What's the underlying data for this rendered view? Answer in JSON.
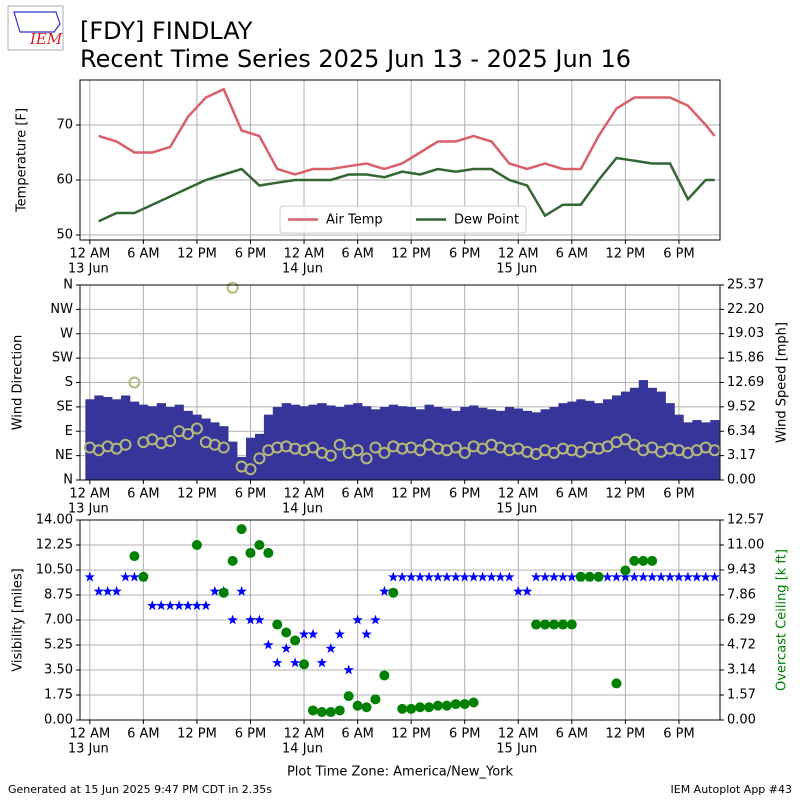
{
  "header": {
    "title": "[FDY] FINDLAY",
    "subtitle": "Recent Time Series 2025 Jun 13 - 2025 Jun 16",
    "logo_text": "IEM"
  },
  "footer": {
    "left": "Generated at 15 Jun 2025 9:47 PM CDT in 2.35s",
    "right": "IEM Autoplot App #43"
  },
  "chart_data": [
    {
      "type": "line",
      "ylabel": "Temperature [F]",
      "grid": true,
      "legend": "lower center",
      "xlim": [
        -1.1,
        70.6
      ],
      "ylim": [
        49.09,
        78.18
      ],
      "yticks": [
        50,
        60,
        70
      ],
      "xticks": [
        {
          "value": 0,
          "label": "12 AM"
        },
        {
          "value": 6,
          "label": "6 AM"
        },
        {
          "value": 12,
          "label": "12 PM"
        },
        {
          "value": 18,
          "label": "6 PM"
        },
        {
          "value": 24,
          "label": "12 AM"
        },
        {
          "value": 30,
          "label": "6 AM"
        },
        {
          "value": 36,
          "label": "12 PM"
        },
        {
          "value": 42,
          "label": "6 PM"
        },
        {
          "value": 48,
          "label": "12 AM"
        },
        {
          "value": 54,
          "label": "6 AM"
        },
        {
          "value": 60,
          "label": "12 PM"
        },
        {
          "value": 66,
          "label": "6 PM"
        }
      ],
      "xdates": [
        {
          "value": 0,
          "label": "13 Jun"
        },
        {
          "value": 24,
          "label": "14 Jun"
        },
        {
          "value": 48,
          "label": "15 Jun"
        }
      ],
      "x": [
        1,
        3,
        5,
        7,
        9,
        11,
        13,
        15,
        17,
        19,
        21,
        23,
        25,
        27,
        29,
        31,
        33,
        35,
        37,
        39,
        41,
        43,
        45,
        47,
        49,
        51,
        53,
        55,
        57,
        59,
        61,
        63,
        65,
        67,
        69,
        70
      ],
      "series": [
        {
          "name": "Air Temp",
          "color": "#d9606a",
          "mark": "line",
          "values": [
            68,
            67,
            65,
            65,
            66,
            71.5,
            75,
            76.5,
            69,
            68,
            62,
            61,
            62,
            62,
            62.5,
            63,
            62,
            63,
            65,
            67,
            67,
            68,
            67,
            63,
            62,
            63,
            62,
            62,
            68,
            73,
            75,
            75,
            75,
            73.5,
            70,
            68
          ]
        },
        {
          "name": "Dew Point",
          "color": "#336633",
          "mark": "line",
          "values": [
            52.5,
            54,
            54,
            55.5,
            57,
            58.5,
            60,
            61,
            62,
            59,
            59.5,
            60,
            60,
            60,
            61,
            61,
            60.5,
            61.5,
            61,
            62,
            61.5,
            62,
            62,
            60,
            59,
            53.5,
            55.5,
            55.5,
            60,
            64,
            63.5,
            63,
            63,
            56.5,
            60,
            60
          ]
        }
      ]
    },
    {
      "type": "bar",
      "ylabel": "Wind Direction",
      "y2label": "Wind Speed [mph]",
      "grid": true,
      "xlim": [
        -1.1,
        70.6
      ],
      "ylim": [
        0,
        360
      ],
      "y2lim": [
        0,
        25.37
      ],
      "yticks": [
        {
          "value": 0,
          "label": "N"
        },
        {
          "value": 45,
          "label": "NE"
        },
        {
          "value": 90,
          "label": "E"
        },
        {
          "value": 135,
          "label": "SE"
        },
        {
          "value": 180,
          "label": "S"
        },
        {
          "value": 225,
          "label": "SW"
        },
        {
          "value": 270,
          "label": "W"
        },
        {
          "value": 315,
          "label": "NW"
        },
        {
          "value": 360,
          "label": "N"
        }
      ],
      "y2ticks": [
        {
          "value": 0,
          "label": "0.00"
        },
        3.17,
        6.34,
        9.52,
        12.69,
        15.86,
        19.03,
        {
          "value": 22.2,
          "label": "22.20"
        },
        25.37
      ],
      "xticks": [
        {
          "value": 0,
          "label": "12 AM"
        },
        {
          "value": 6,
          "label": "6 AM"
        },
        {
          "value": 12,
          "label": "12 PM"
        },
        {
          "value": 18,
          "label": "6 PM"
        },
        {
          "value": 24,
          "label": "12 AM"
        },
        {
          "value": 30,
          "label": "6 AM"
        },
        {
          "value": 36,
          "label": "12 PM"
        },
        {
          "value": 42,
          "label": "6 PM"
        },
        {
          "value": 48,
          "label": "12 AM"
        },
        {
          "value": 54,
          "label": "6 AM"
        },
        {
          "value": 60,
          "label": "12 PM"
        },
        {
          "value": 66,
          "label": "6 PM"
        }
      ],
      "xdates": [
        {
          "value": 0,
          "label": "13 Jun"
        },
        {
          "value": 24,
          "label": "14 Jun"
        },
        {
          "value": 48,
          "label": "15 Jun"
        }
      ],
      "x": [
        0,
        1,
        2,
        3,
        4,
        5,
        6,
        7,
        8,
        9,
        10,
        11,
        12,
        13,
        14,
        15,
        16,
        17,
        18,
        19,
        20,
        21,
        22,
        23,
        24,
        25,
        26,
        27,
        28,
        29,
        30,
        31,
        32,
        33,
        34,
        35,
        36,
        37,
        38,
        39,
        40,
        41,
        42,
        43,
        44,
        45,
        46,
        47,
        48,
        49,
        50,
        51,
        52,
        53,
        54,
        55,
        56,
        57,
        58,
        59,
        60,
        61,
        62,
        63,
        64,
        65,
        66,
        67,
        68,
        69,
        70
      ],
      "series": [
        {
          "color": "#35359a",
          "mark": "bar",
          "axis": "y2",
          "values": [
            10.5,
            11,
            10.8,
            10.5,
            11,
            10.2,
            9.8,
            9.6,
            10,
            9.5,
            9.8,
            9,
            8.5,
            8,
            7.5,
            7,
            5,
            3,
            5.5,
            6,
            8.5,
            9.5,
            10,
            9.8,
            9.6,
            9.8,
            10,
            9.7,
            9.5,
            9.8,
            10,
            9.6,
            9.2,
            9.5,
            9.8,
            9.6,
            9.5,
            9.2,
            9.8,
            9.5,
            9.3,
            9,
            9.5,
            9.7,
            9.4,
            9.2,
            9,
            9.5,
            9.3,
            9,
            8.8,
            9.2,
            9.5,
            10,
            10.2,
            10.5,
            10.3,
            10,
            10.5,
            11,
            11.5,
            12,
            13,
            12,
            11.5,
            10,
            8.5,
            7.5,
            7.8,
            7.5,
            7.8
          ]
        },
        {
          "color": "#b5b87a",
          "mark": "circle",
          "axis": "y",
          "values": [
            60,
            55,
            62,
            58,
            65,
            180,
            70,
            75,
            68,
            72,
            90,
            85,
            95,
            70,
            65,
            60,
            355,
            25,
            20,
            40,
            55,
            60,
            62,
            58,
            55,
            60,
            50,
            45,
            65,
            50,
            55,
            40,
            60,
            50,
            62,
            58,
            60,
            55,
            65,
            58,
            55,
            60,
            50,
            62,
            58,
            65,
            60,
            55,
            58,
            52,
            48,
            55,
            50,
            58,
            55,
            52,
            60,
            58,
            62,
            70,
            75,
            65,
            55,
            60,
            52,
            58,
            55,
            50,
            55,
            60,
            55
          ]
        }
      ]
    },
    {
      "type": "scatter",
      "ylabel": "Visibility [miles]",
      "y2label": "Overcast Ceiling [k ft]",
      "y2label_color": "#008000",
      "xlabel": "Plot Time Zone: America/New_York",
      "grid": true,
      "xlim": [
        -1.1,
        70.6
      ],
      "ylim": [
        0,
        14
      ],
      "y2lim": [
        0,
        12.57
      ],
      "yticks": [
        {
          "value": 0,
          "label": "0.00"
        },
        1.75,
        {
          "value": 3.5,
          "label": "3.50"
        },
        5.25,
        {
          "value": 7,
          "label": "7.00"
        },
        8.75,
        {
          "value": 10.5,
          "label": "10.50"
        },
        12.25,
        {
          "value": 14,
          "label": "14.00"
        }
      ],
      "y2ticks": [
        {
          "value": 0,
          "label": "0.00"
        },
        1.57,
        3.14,
        4.72,
        6.29,
        7.86,
        9.43,
        {
          "value": 11,
          "label": "11.00"
        },
        12.57
      ],
      "xticks": [
        {
          "value": 0,
          "label": "12 AM"
        },
        {
          "value": 6,
          "label": "6 AM"
        },
        {
          "value": 12,
          "label": "12 PM"
        },
        {
          "value": 18,
          "label": "6 PM"
        },
        {
          "value": 24,
          "label": "12 AM"
        },
        {
          "value": 30,
          "label": "6 AM"
        },
        {
          "value": 36,
          "label": "12 PM"
        },
        {
          "value": 42,
          "label": "6 PM"
        },
        {
          "value": 48,
          "label": "12 AM"
        },
        {
          "value": 54,
          "label": "6 AM"
        },
        {
          "value": 60,
          "label": "12 PM"
        },
        {
          "value": 66,
          "label": "6 PM"
        }
      ],
      "xdates": [
        {
          "value": 0,
          "label": "13 Jun"
        },
        {
          "value": 24,
          "label": "14 Jun"
        },
        {
          "value": 48,
          "label": "15 Jun"
        }
      ],
      "x": [
        0,
        1,
        2,
        3,
        4,
        5,
        6,
        7,
        8,
        9,
        10,
        11,
        12,
        13,
        14,
        15,
        16,
        17,
        18,
        19,
        20,
        21,
        22,
        23,
        24,
        25,
        26,
        27,
        28,
        29,
        30,
        31,
        32,
        33,
        34,
        35,
        36,
        37,
        38,
        39,
        40,
        41,
        42,
        43,
        44,
        45,
        46,
        47,
        48,
        49,
        50,
        51,
        52,
        53,
        54,
        55,
        56,
        57,
        58,
        59,
        60,
        61,
        62,
        63,
        64,
        65,
        66,
        67,
        68,
        69,
        70
      ],
      "series": [
        {
          "color": "#0000ff",
          "mark": "star",
          "axis": "y",
          "values": [
            10,
            9,
            9,
            9,
            10,
            10,
            10,
            8,
            8,
            8,
            8,
            8,
            8,
            8,
            9,
            9,
            7,
            9,
            7,
            7,
            5.25,
            4,
            5,
            4,
            6,
            6,
            4,
            5,
            6,
            3.5,
            7,
            6,
            7,
            9,
            10,
            10,
            10,
            10,
            10,
            10,
            10,
            10,
            10,
            10,
            10,
            10,
            10,
            10,
            9,
            9,
            10,
            10,
            10,
            10,
            10,
            10,
            10,
            10,
            10,
            10,
            10,
            10,
            10,
            10,
            10,
            10,
            10,
            10,
            10,
            10,
            10
          ]
        },
        {
          "color": "#008000",
          "mark": "dot",
          "axis": "y2",
          "values": [
            null,
            null,
            null,
            null,
            null,
            10.3,
            9,
            null,
            null,
            null,
            null,
            null,
            11,
            null,
            null,
            8,
            10,
            12,
            10.5,
            11,
            10.5,
            6,
            5.5,
            5,
            3.5,
            0.6,
            0.5,
            0.5,
            0.6,
            1.5,
            0.9,
            0.8,
            1.3,
            2.8,
            8,
            0.7,
            0.7,
            0.8,
            0.8,
            0.9,
            0.9,
            1,
            1,
            1.1,
            null,
            null,
            null,
            null,
            null,
            null,
            6,
            6,
            6,
            6,
            6,
            9,
            9,
            9,
            null,
            2.3,
            9.4,
            10,
            10,
            10,
            null,
            null,
            null,
            null,
            null,
            null,
            null
          ]
        }
      ]
    }
  ]
}
